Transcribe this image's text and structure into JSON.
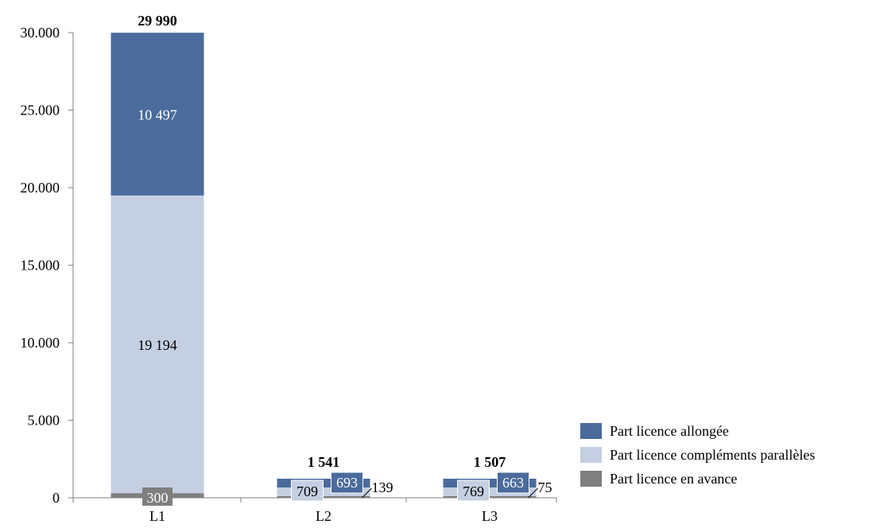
{
  "chart_data": {
    "type": "bar",
    "stacked": true,
    "categories": [
      "L1",
      "L2",
      "L3"
    ],
    "ylim": [
      0,
      30000
    ],
    "yticks": [
      0,
      5000,
      10000,
      15000,
      20000,
      25000,
      30000
    ],
    "ytick_labels": [
      "0",
      "5.000",
      "10.000",
      "15.000",
      "20.000",
      "25.000",
      "30.000"
    ],
    "series": [
      {
        "name": "Part licence en avance",
        "values": [
          300,
          139,
          75
        ],
        "labels": [
          "300",
          "139",
          "75"
        ],
        "color": "#7f7f7f"
      },
      {
        "name": "Part  licence compléments parallèles",
        "values": [
          19194,
          709,
          769
        ],
        "labels": [
          "19 194",
          "709",
          "769"
        ],
        "color": "#c5cfe2"
      },
      {
        "name": "Part  licence allongée",
        "values": [
          10497,
          693,
          663
        ],
        "labels": [
          "10 497",
          "693",
          "663"
        ],
        "color": "#4a6b9c"
      }
    ],
    "totals": [
      "29 990",
      "1 541",
      "1 507"
    ],
    "legend_position": "bottom-right",
    "legend_order": [
      "Part  licence allongée",
      "Part  licence compléments parallèles",
      "Part licence en avance"
    ],
    "grid": false
  }
}
